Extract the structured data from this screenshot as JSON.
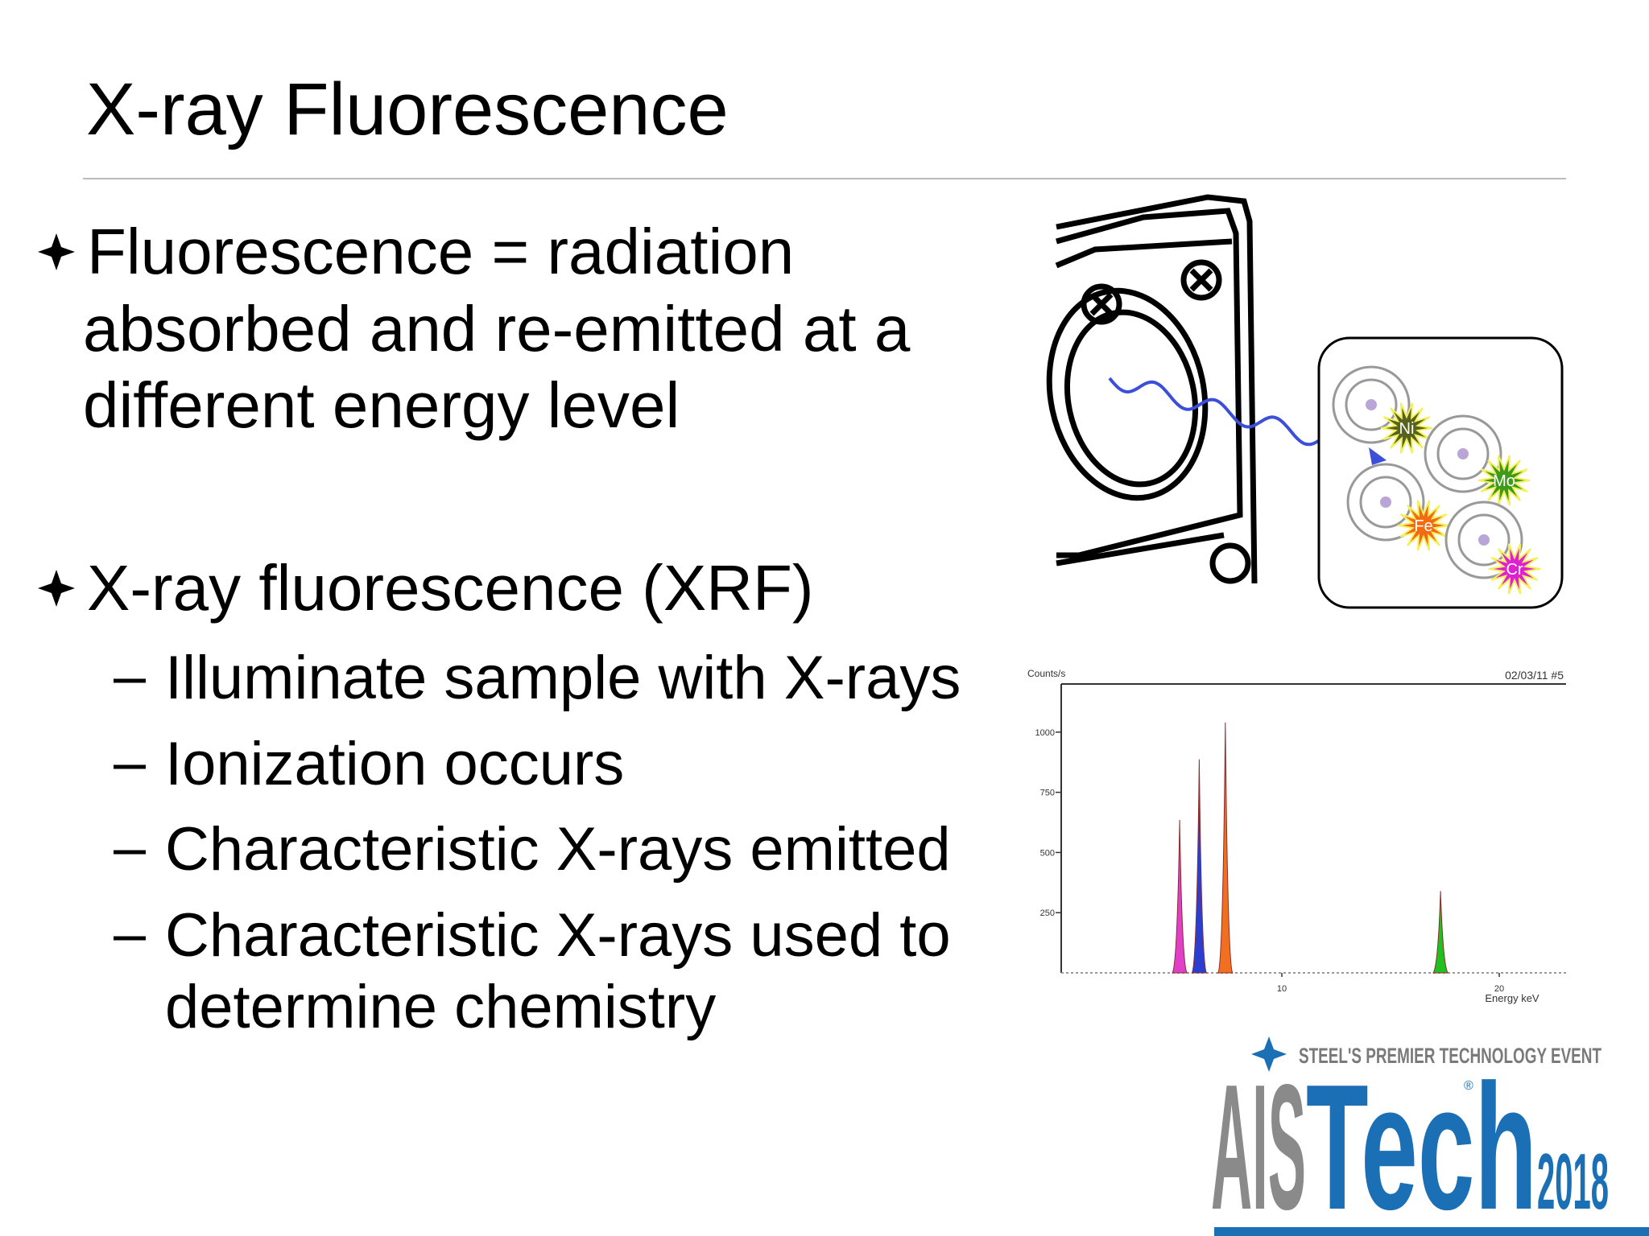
{
  "title": "X-ray Fluorescence",
  "bullets": [
    {
      "lines": [
        "Fluorescence = radiation",
        "absorbed and re-emitted at a",
        "different energy level"
      ]
    },
    {
      "lines": [
        "X-ray fluorescence (XRF)"
      ],
      "sub": [
        [
          "Illuminate sample with X-rays"
        ],
        [
          "Ionization occurs"
        ],
        [
          "Characteristic X-rays emitted"
        ],
        [
          "Characteristic X-rays used to",
          "determine chemistry"
        ]
      ]
    }
  ],
  "diagram": {
    "elements": [
      "Ni",
      "Mo",
      "Fe",
      "Cr"
    ]
  },
  "chart_data": {
    "type": "area",
    "ylabel": "Counts/s",
    "xlabel": "Energy keV",
    "annotation": "02/03/11 #5",
    "x": [
      5.3,
      6.2,
      7.4,
      17.3
    ],
    "values": [
      635,
      887,
      1040,
      340
    ],
    "colors": [
      "#e040c8",
      "#2a3fd0",
      "#f07020",
      "#20c020"
    ],
    "xlim": [
      0,
      23
    ],
    "ylim": [
      0,
      1200
    ],
    "xticks": [
      10,
      20
    ],
    "yticks": [
      250,
      500,
      750,
      1000
    ]
  },
  "logo": {
    "tagline": "STEEL'S PREMIER TECHNOLOGY EVENT",
    "brand_gray": "AIS",
    "brand_blue": "Tech",
    "year": "2018",
    "mark": "®"
  }
}
